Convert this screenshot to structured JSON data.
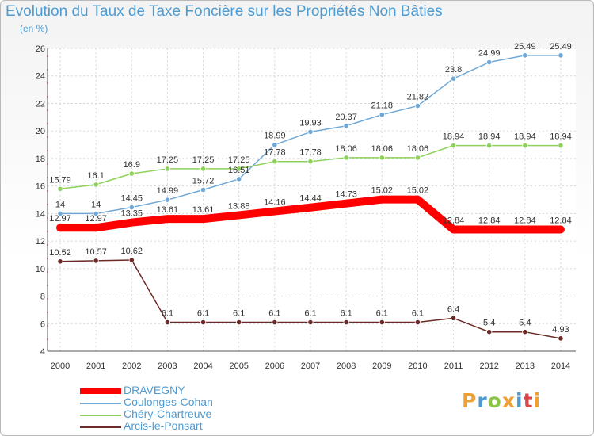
{
  "header": {
    "title": "Evolution du Taux de Taxe Foncière sur les Propriétés Non Bâties",
    "unit": "(en %)"
  },
  "logo": {
    "letters": [
      "P",
      "r",
      "o",
      "x",
      "i",
      "t",
      "i"
    ]
  },
  "chart_data": {
    "type": "line",
    "x": [
      2000,
      2001,
      2002,
      2003,
      2004,
      2005,
      2006,
      2007,
      2008,
      2009,
      2010,
      2011,
      2012,
      2013,
      2014
    ],
    "ylim": [
      4,
      26
    ],
    "yticks": [
      4,
      6,
      8,
      10,
      12,
      14,
      16,
      18,
      20,
      22,
      24,
      26
    ],
    "grid": true,
    "legend_position": "bottom-left",
    "series": [
      {
        "name": "DRAVEGNY",
        "color": "#ff0000",
        "values": [
          12.97,
          12.97,
          13.35,
          13.61,
          13.61,
          13.88,
          14.16,
          14.44,
          14.73,
          15.02,
          15.02,
          12.84,
          12.84,
          12.84,
          12.84
        ],
        "labels": [
          "12.97",
          "12.97",
          "13.35",
          "13.61",
          "13.61",
          "13.88",
          "14.16",
          "14.44",
          "14.73",
          "15.02",
          "15.02",
          "12.84",
          "12.84",
          "12.84",
          "12.84"
        ]
      },
      {
        "name": "Coulonges-Cohan",
        "color": "#6fa8d6",
        "values": [
          14,
          14,
          14.45,
          14.99,
          15.72,
          16.51,
          18.99,
          19.93,
          20.37,
          21.18,
          21.82,
          23.8,
          24.99,
          25.49,
          25.49
        ],
        "labels": [
          "14",
          "14",
          "14.45",
          "14.99",
          "15.72",
          "16.51",
          "18.99",
          "19.93",
          "20.37",
          "21.18",
          "21.82",
          "23.8",
          "24.99",
          "25.49",
          "25.49"
        ]
      },
      {
        "name": "Chéry-Chartreuve",
        "color": "#8ed15a",
        "values": [
          15.79,
          16.1,
          16.9,
          17.25,
          17.25,
          17.25,
          17.78,
          17.78,
          18.06,
          18.06,
          18.06,
          18.94,
          18.94,
          18.94,
          18.94
        ],
        "labels": [
          "15.79",
          "16.1",
          "16.9",
          "17.25",
          "17.25",
          "17.25",
          "17.78",
          "17.78",
          "18.06",
          "18.06",
          "18.06",
          "18.94",
          "18.94",
          "18.94",
          "18.94"
        ]
      },
      {
        "name": "Arcis-le-Ponsart",
        "color": "#6b2a26",
        "values": [
          10.52,
          10.57,
          10.62,
          6.1,
          6.1,
          6.1,
          6.1,
          6.1,
          6.1,
          6.1,
          6.1,
          6.4,
          5.4,
          5.4,
          4.93
        ],
        "labels": [
          "10.52",
          "10.57",
          "10.62",
          "6.1",
          "6.1",
          "6.1",
          "6.1",
          "6.1",
          "6.1",
          "6.1",
          "6.1",
          "6.4",
          "5.4",
          "5.4",
          "4.93"
        ]
      }
    ]
  }
}
